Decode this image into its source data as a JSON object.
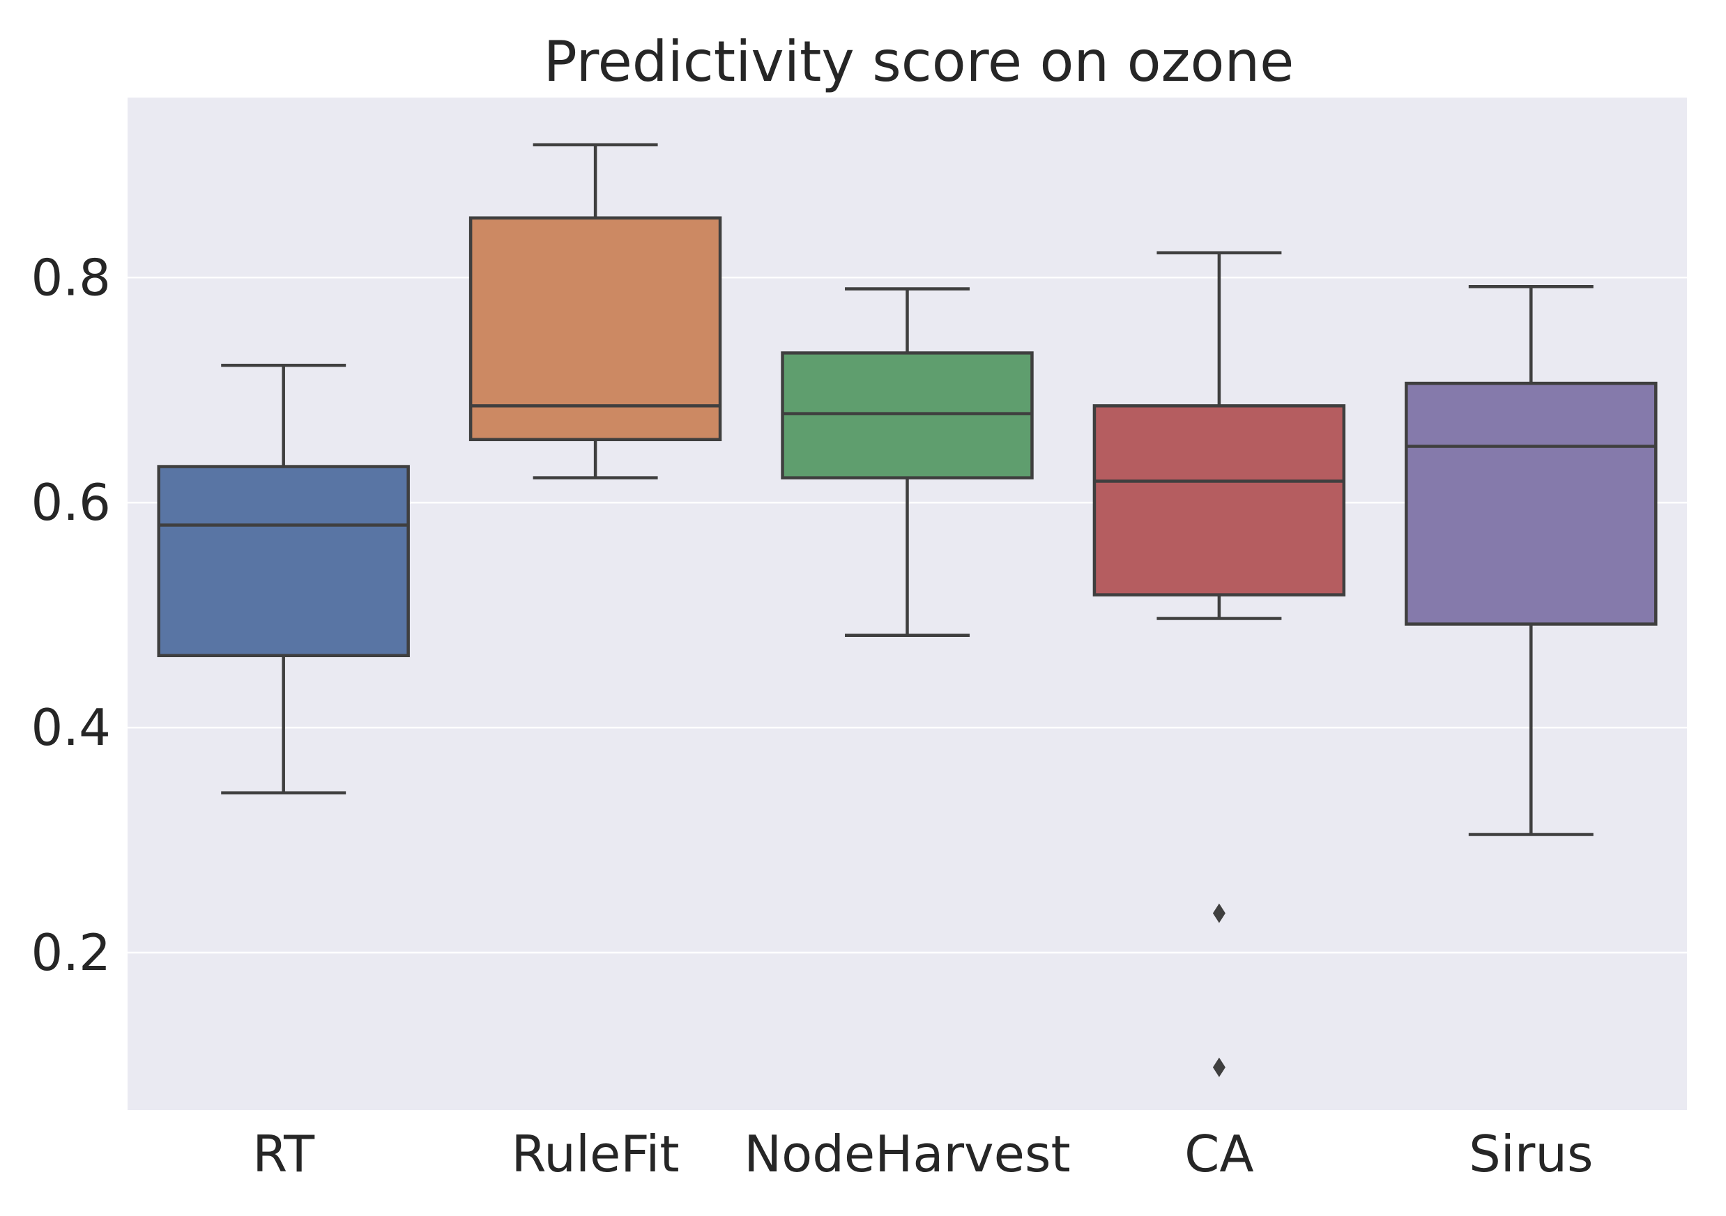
{
  "chart_data": {
    "type": "box",
    "title": "Predictivity score on ozone",
    "xlabel": "",
    "ylabel": "",
    "ylim": [
      0.06,
      0.96
    ],
    "yticks": [
      0.2,
      0.4,
      0.6,
      0.8
    ],
    "ytick_labels": [
      "0.2",
      "0.4",
      "0.6",
      "0.8"
    ],
    "grid": true,
    "categories": [
      "RT",
      "RuleFit",
      "NodeHarvest",
      "CA",
      "Sirus"
    ],
    "boxes": [
      {
        "name": "RT",
        "whisker_low": 0.342,
        "q1": 0.464,
        "median": 0.58,
        "q3": 0.632,
        "whisker_high": 0.722,
        "outliers": [],
        "color": "#5975a4"
      },
      {
        "name": "RuleFit",
        "whisker_low": 0.622,
        "q1": 0.656,
        "median": 0.686,
        "q3": 0.853,
        "whisker_high": 0.918,
        "outliers": [],
        "color": "#cc8963"
      },
      {
        "name": "NodeHarvest",
        "whisker_low": 0.482,
        "q1": 0.622,
        "median": 0.679,
        "q3": 0.733,
        "whisker_high": 0.79,
        "outliers": [],
        "color": "#5f9e6e"
      },
      {
        "name": "CA",
        "whisker_low": 0.497,
        "q1": 0.518,
        "median": 0.619,
        "q3": 0.686,
        "whisker_high": 0.822,
        "outliers": [
          0.235,
          0.098
        ],
        "color": "#b55d60"
      },
      {
        "name": "Sirus",
        "whisker_low": 0.305,
        "q1": 0.492,
        "median": 0.65,
        "q3": 0.706,
        "whisker_high": 0.792,
        "outliers": [],
        "color": "#857aab"
      }
    ],
    "colors": {
      "plot_background": "#eaeaf2",
      "grid": "#ffffff",
      "box_edge": "#3f3f3f",
      "text": "#262626"
    }
  }
}
